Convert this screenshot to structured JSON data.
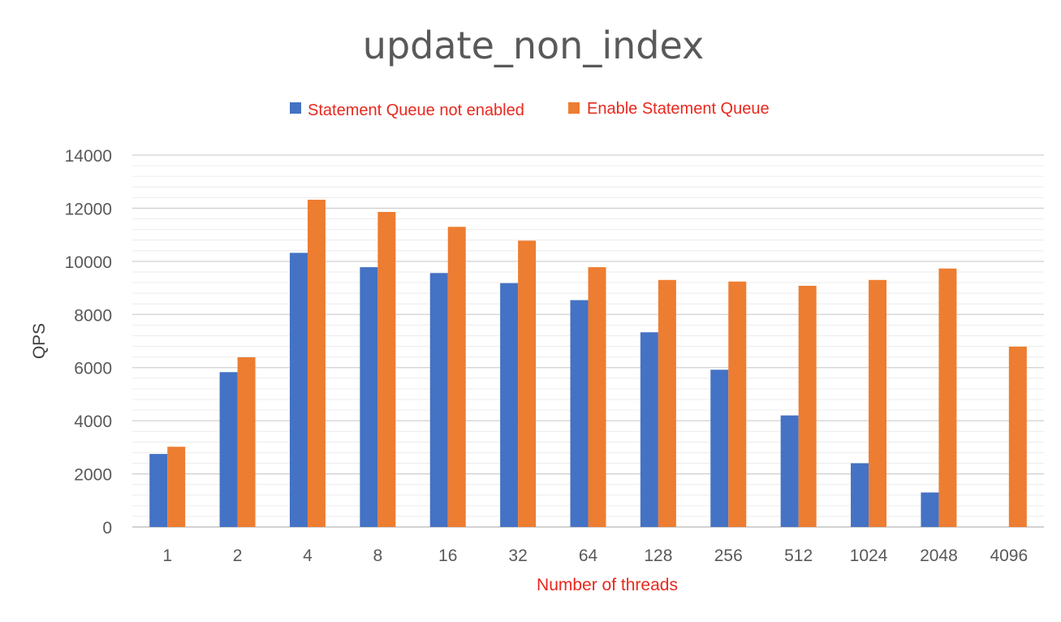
{
  "chart_data": {
    "type": "bar",
    "title": "update_non_index",
    "xlabel": "Number of threads",
    "ylabel": "QPS",
    "categories": [
      "1",
      "2",
      "4",
      "8",
      "16",
      "32",
      "64",
      "128",
      "256",
      "512",
      "1024",
      "2048",
      "4096"
    ],
    "series": [
      {
        "name": "Statement Queue not enabled",
        "color": "#4472c4",
        "values": [
          2750,
          5830,
          10320,
          9780,
          9560,
          9180,
          8540,
          7330,
          5920,
          4200,
          2400,
          1300,
          null
        ]
      },
      {
        "name": "Enable Statement Queue",
        "color": "#ed7d31",
        "values": [
          3020,
          6390,
          12320,
          11860,
          11300,
          10780,
          9780,
          9300,
          9240,
          9080,
          9300,
          9730,
          6790
        ]
      }
    ],
    "ylim": [
      0,
      14000
    ],
    "yticks": [
      0,
      2000,
      4000,
      6000,
      8000,
      10000,
      12000,
      14000
    ],
    "grid": true,
    "legend_position": "top"
  }
}
